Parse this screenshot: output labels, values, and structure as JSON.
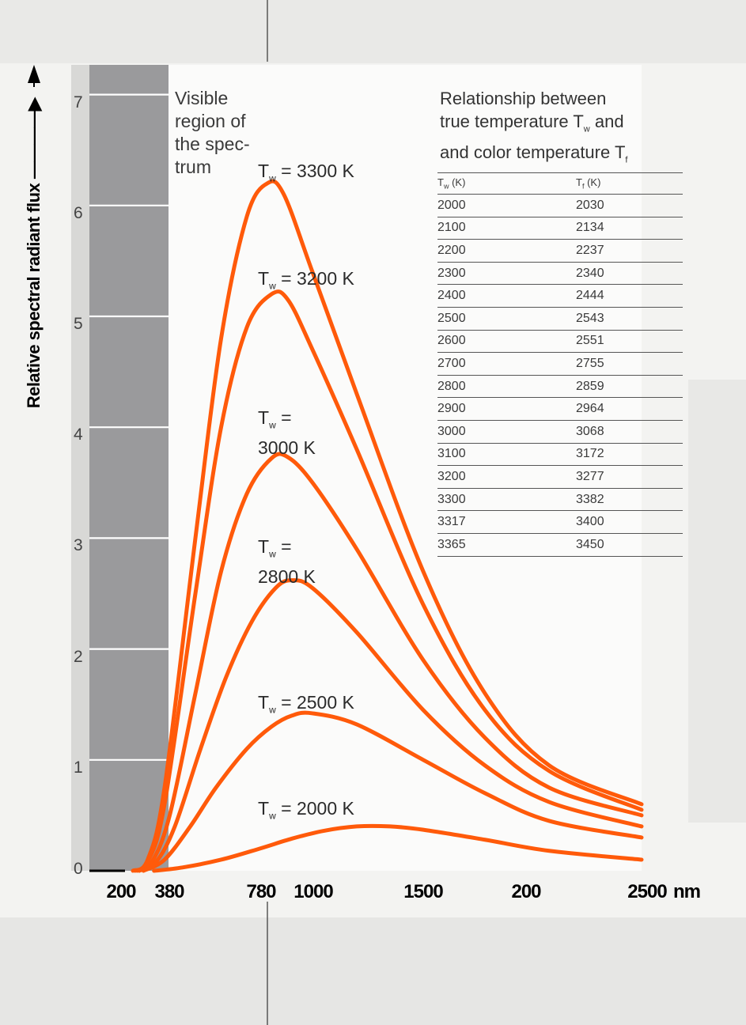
{
  "chart_data": {
    "type": "line",
    "ylabel": "Relative spectral radiant flux",
    "x_unit": "nm",
    "x_ticks": [
      "200",
      "380",
      "780",
      "1000",
      "1500",
      "200",
      "2500"
    ],
    "y_ticks": [
      "0",
      "1",
      "2",
      "3",
      "4",
      "5",
      "6",
      "7"
    ],
    "ylim": [
      0,
      7
    ],
    "visible_region_label": "Visible region of the spec- trum",
    "series": [
      {
        "name": "Tw = 3300 K",
        "label_main": "T",
        "label_sub": "w",
        "label_rest": " = 3300 K",
        "x": [
          230,
          300,
          380,
          500,
          600,
          700,
          780,
          860,
          1000,
          1200,
          1500,
          1800,
          2100,
          2500
        ],
        "y": [
          0.0,
          0.1,
          0.75,
          3.0,
          4.8,
          5.9,
          6.2,
          6.1,
          5.4,
          4.3,
          2.7,
          1.6,
          0.95,
          0.6
        ]
      },
      {
        "name": "Tw = 3200 K",
        "label_main": "T",
        "label_sub": "w",
        "label_rest": " = 3200 K",
        "x": [
          240,
          300,
          380,
          500,
          600,
          700,
          800,
          880,
          1000,
          1200,
          1500,
          1800,
          2100,
          2500
        ],
        "y": [
          0.0,
          0.08,
          0.6,
          2.5,
          4.0,
          4.9,
          5.2,
          5.15,
          4.7,
          3.8,
          2.4,
          1.45,
          0.9,
          0.55
        ]
      },
      {
        "name": "Tw = 3000 K",
        "label_main": "T",
        "label_sub": "w",
        "label_rest": " =",
        "label_line2": "3000 K",
        "x": [
          250,
          320,
          400,
          500,
          600,
          700,
          800,
          880,
          1000,
          1200,
          1500,
          1800,
          2100,
          2500
        ],
        "y": [
          0.0,
          0.08,
          0.5,
          1.6,
          2.7,
          3.4,
          3.72,
          3.73,
          3.5,
          2.9,
          1.9,
          1.2,
          0.75,
          0.5
        ]
      },
      {
        "name": "Tw = 2800 K",
        "label_main": "T",
        "label_sub": "w",
        "label_rest": " =",
        "label_line2": "2800 K",
        "x": [
          260,
          340,
          420,
          520,
          620,
          720,
          820,
          900,
          1000,
          1200,
          1500,
          1800,
          2100,
          2500
        ],
        "y": [
          0.0,
          0.08,
          0.4,
          1.1,
          1.75,
          2.25,
          2.55,
          2.62,
          2.55,
          2.15,
          1.45,
          0.95,
          0.62,
          0.4
        ]
      },
      {
        "name": "Tw = 2500 K",
        "label_main": "T",
        "label_sub": "w",
        "label_rest": " = 2500 K",
        "x": [
          280,
          380,
          480,
          580,
          700,
          800,
          900,
          1000,
          1200,
          1500,
          1800,
          2100,
          2500
        ],
        "y": [
          0.0,
          0.1,
          0.4,
          0.75,
          1.1,
          1.3,
          1.4,
          1.42,
          1.32,
          1.0,
          0.7,
          0.45,
          0.3
        ]
      },
      {
        "name": "Tw = 2000 K",
        "label_main": "T",
        "label_sub": "w",
        "label_rest": " = 2000 K",
        "x": [
          330,
          450,
          600,
          750,
          900,
          1050,
          1200,
          1350,
          1500,
          1800,
          2100,
          2500
        ],
        "y": [
          0.0,
          0.03,
          0.1,
          0.2,
          0.29,
          0.36,
          0.4,
          0.4,
          0.37,
          0.28,
          0.18,
          0.1
        ]
      }
    ],
    "colors": {
      "curve": "#ff5a0a",
      "visible_band": "#9a9a9c",
      "grid": "#ffffff"
    }
  },
  "table": {
    "title_line1": "Relationship between",
    "title_line2a": "true temperature T",
    "title_line2_sub": "w",
    "title_line2b": " and",
    "title_line3a": "and color temperature T",
    "title_line3_sub": "f",
    "col1_main": "T",
    "col1_sub": "w",
    "col1_unit": " (K)",
    "col2_main": "T",
    "col2_sub": "f",
    "col2_unit": " (K)",
    "rows": [
      [
        "2000",
        "2030"
      ],
      [
        "2100",
        "2134"
      ],
      [
        "2200",
        "2237"
      ],
      [
        "2300",
        "2340"
      ],
      [
        "2400",
        "2444"
      ],
      [
        "2500",
        "2543"
      ],
      [
        "2600",
        "2551"
      ],
      [
        "2700",
        "2755"
      ],
      [
        "2800",
        "2859"
      ],
      [
        "2900",
        "2964"
      ],
      [
        "3000",
        "3068"
      ],
      [
        "3100",
        "3172"
      ],
      [
        "3200",
        "3277"
      ],
      [
        "3300",
        "3382"
      ],
      [
        "3317",
        "3400"
      ],
      [
        "3365",
        "3450"
      ]
    ]
  }
}
